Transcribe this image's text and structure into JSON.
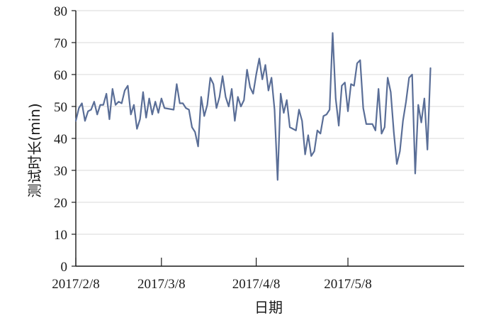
{
  "chart_data": {
    "type": "line",
    "title": "",
    "xlabel": "日期",
    "ylabel": "测试时长(min)",
    "ylim": [
      0,
      80
    ],
    "yticks": [
      0,
      10,
      20,
      30,
      40,
      50,
      60,
      70,
      80
    ],
    "x_start": "2017-02-08",
    "x_end": "2017-06-15",
    "xticks": [
      {
        "date": "2017-02-08",
        "label": "2017/2/8"
      },
      {
        "date": "2017-03-08",
        "label": "2017/3/8"
      },
      {
        "date": "2017-04-08",
        "label": "2017/4/8"
      },
      {
        "date": "2017-05-08",
        "label": "2017/5/8"
      }
    ],
    "grid": true,
    "line_color": "#5a6e97",
    "series": [
      {
        "name": "",
        "points": [
          [
            "2017-02-08",
            45.5
          ],
          [
            "2017-02-09",
            49.5
          ],
          [
            "2017-02-10",
            51.0
          ],
          [
            "2017-02-11",
            45.5
          ],
          [
            "2017-02-12",
            48.5
          ],
          [
            "2017-02-13",
            49.0
          ],
          [
            "2017-02-14",
            51.5
          ],
          [
            "2017-02-15",
            47.5
          ],
          [
            "2017-02-16",
            50.5
          ],
          [
            "2017-02-17",
            50.5
          ],
          [
            "2017-02-18",
            54.0
          ],
          [
            "2017-02-19",
            46.0
          ],
          [
            "2017-02-20",
            55.5
          ],
          [
            "2017-02-21",
            50.5
          ],
          [
            "2017-02-22",
            51.5
          ],
          [
            "2017-02-23",
            51.0
          ],
          [
            "2017-02-24",
            55.0
          ],
          [
            "2017-02-25",
            56.5
          ],
          [
            "2017-02-26",
            47.5
          ],
          [
            "2017-02-27",
            50.5
          ],
          [
            "2017-02-28",
            43.0
          ],
          [
            "2017-03-01",
            46.0
          ],
          [
            "2017-03-02",
            54.5
          ],
          [
            "2017-03-03",
            46.5
          ],
          [
            "2017-03-04",
            52.5
          ],
          [
            "2017-03-05",
            47.5
          ],
          [
            "2017-03-06",
            51.5
          ],
          [
            "2017-03-07",
            48.0
          ],
          [
            "2017-03-08",
            52.5
          ],
          [
            "2017-03-09",
            49.5
          ],
          [
            "2017-03-12",
            49.0
          ],
          [
            "2017-03-13",
            57.0
          ],
          [
            "2017-03-14",
            51.0
          ],
          [
            "2017-03-15",
            51.0
          ],
          [
            "2017-03-16",
            49.5
          ],
          [
            "2017-03-17",
            49.0
          ],
          [
            "2017-03-18",
            43.5
          ],
          [
            "2017-03-19",
            42.0
          ],
          [
            "2017-03-20",
            37.5
          ],
          [
            "2017-03-21",
            53.0
          ],
          [
            "2017-03-22",
            47.0
          ],
          [
            "2017-03-23",
            50.5
          ],
          [
            "2017-03-24",
            59.0
          ],
          [
            "2017-03-25",
            57.0
          ],
          [
            "2017-03-26",
            49.5
          ],
          [
            "2017-03-27",
            53.0
          ],
          [
            "2017-03-28",
            59.5
          ],
          [
            "2017-03-29",
            53.0
          ],
          [
            "2017-03-30",
            50.0
          ],
          [
            "2017-03-31",
            55.5
          ],
          [
            "2017-04-01",
            45.5
          ],
          [
            "2017-04-02",
            53.0
          ],
          [
            "2017-04-03",
            50.0
          ],
          [
            "2017-04-04",
            52.0
          ],
          [
            "2017-04-05",
            61.5
          ],
          [
            "2017-04-06",
            56.0
          ],
          [
            "2017-04-07",
            54.0
          ],
          [
            "2017-04-08",
            60.0
          ],
          [
            "2017-04-09",
            65.0
          ],
          [
            "2017-04-10",
            58.5
          ],
          [
            "2017-04-11",
            63.0
          ],
          [
            "2017-04-12",
            55.0
          ],
          [
            "2017-04-13",
            59.0
          ],
          [
            "2017-04-14",
            49.0
          ],
          [
            "2017-04-15",
            27.0
          ],
          [
            "2017-04-16",
            54.0
          ],
          [
            "2017-04-17",
            48.0
          ],
          [
            "2017-04-18",
            52.0
          ],
          [
            "2017-04-19",
            43.5
          ],
          [
            "2017-04-20",
            43.0
          ],
          [
            "2017-04-21",
            42.5
          ],
          [
            "2017-04-22",
            49.0
          ],
          [
            "2017-04-23",
            45.5
          ],
          [
            "2017-04-24",
            35.0
          ],
          [
            "2017-04-25",
            41.0
          ],
          [
            "2017-04-26",
            34.5
          ],
          [
            "2017-04-27",
            36.0
          ],
          [
            "2017-04-28",
            42.5
          ],
          [
            "2017-04-29",
            41.5
          ],
          [
            "2017-04-30",
            47.0
          ],
          [
            "2017-05-01",
            47.5
          ],
          [
            "2017-05-02",
            49.0
          ],
          [
            "2017-05-03",
            73.0
          ],
          [
            "2017-05-04",
            52.5
          ],
          [
            "2017-05-05",
            44.0
          ],
          [
            "2017-05-06",
            56.5
          ],
          [
            "2017-05-07",
            57.5
          ],
          [
            "2017-05-08",
            48.5
          ],
          [
            "2017-05-09",
            57.0
          ],
          [
            "2017-05-10",
            56.5
          ],
          [
            "2017-05-11",
            63.5
          ],
          [
            "2017-05-12",
            64.5
          ],
          [
            "2017-05-13",
            49.5
          ],
          [
            "2017-05-14",
            44.5
          ],
          [
            "2017-05-15",
            44.5
          ],
          [
            "2017-05-16",
            44.5
          ],
          [
            "2017-05-17",
            42.5
          ],
          [
            "2017-05-18",
            55.5
          ],
          [
            "2017-05-19",
            41.5
          ],
          [
            "2017-05-20",
            43.5
          ],
          [
            "2017-05-21",
            59.0
          ],
          [
            "2017-05-22",
            54.5
          ],
          [
            "2017-05-23",
            42.0
          ],
          [
            "2017-05-24",
            32.0
          ],
          [
            "2017-05-25",
            36.0
          ],
          [
            "2017-05-26",
            45.5
          ],
          [
            "2017-05-27",
            51.5
          ],
          [
            "2017-05-28",
            59.0
          ],
          [
            "2017-05-29",
            60.0
          ],
          [
            "2017-05-30",
            29.0
          ],
          [
            "2017-05-31",
            50.5
          ],
          [
            "2017-06-01",
            45.0
          ],
          [
            "2017-06-02",
            52.5
          ],
          [
            "2017-06-03",
            36.5
          ],
          [
            "2017-06-04",
            62.0
          ]
        ]
      }
    ]
  }
}
